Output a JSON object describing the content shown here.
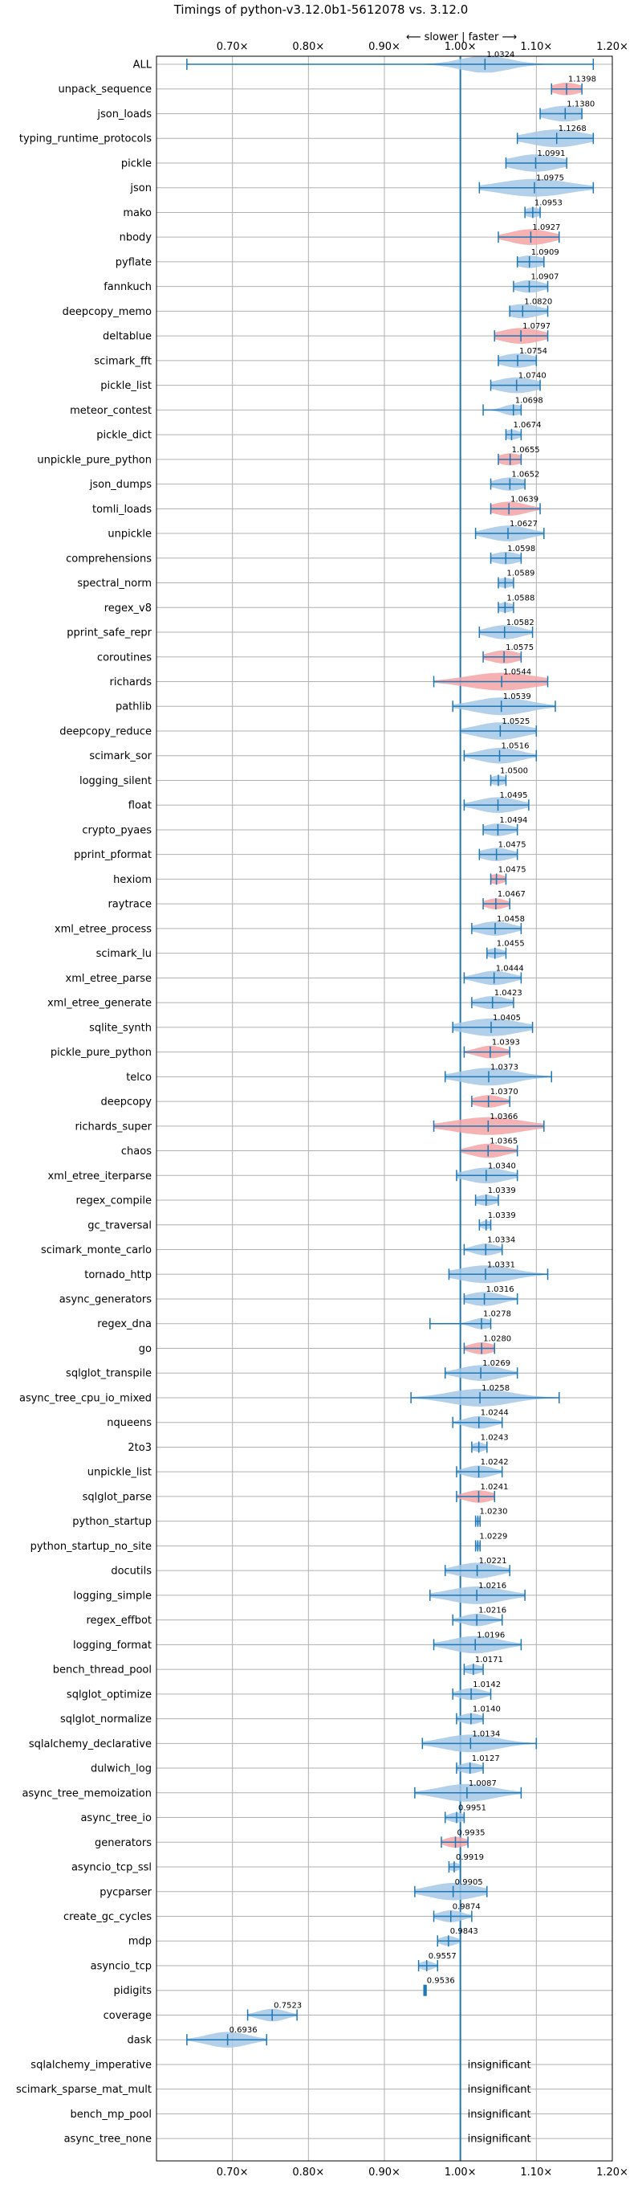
{
  "chart_data": {
    "type": "violin",
    "title": "Timings of python-v3.12.0b1-5612078 vs. 3.12.0",
    "direction_label": "⟵ slower | faster ⟶",
    "xlim": [
      0.6,
      1.2
    ],
    "xticks": [
      0.7,
      0.8,
      0.9,
      1.0,
      1.1,
      1.2
    ],
    "xtick_labels": [
      "0.70×",
      "0.80×",
      "0.90×",
      "1.00×",
      "1.10×",
      "1.20×"
    ],
    "reference_line": 1.0,
    "grid": true,
    "colors": {
      "normal": "#a6c8e6",
      "significant": "#f4a3a6",
      "line": "#1f77b4"
    },
    "insignificant_label": "insignificant",
    "benchmarks": [
      {
        "name": "ALL",
        "mean": 1.0324,
        "label": "1.0324",
        "lo": 0.64,
        "hi": 1.175,
        "width": 0.035,
        "sig": false
      },
      {
        "name": "unpack_sequence",
        "mean": 1.1398,
        "label": "1.1398",
        "lo": 1.12,
        "hi": 1.16,
        "width": 0.02,
        "sig": true
      },
      {
        "name": "json_loads",
        "mean": 1.138,
        "label": "1.1380",
        "lo": 1.105,
        "hi": 1.16,
        "width": 0.03,
        "sig": false
      },
      {
        "name": "typing_runtime_protocols",
        "mean": 1.1268,
        "label": "1.1268",
        "lo": 1.075,
        "hi": 1.175,
        "width": 0.04,
        "sig": false
      },
      {
        "name": "pickle",
        "mean": 1.0991,
        "label": "1.0991",
        "lo": 1.06,
        "hi": 1.14,
        "width": 0.035,
        "sig": false
      },
      {
        "name": "json",
        "mean": 1.0975,
        "label": "1.0975",
        "lo": 1.025,
        "hi": 1.175,
        "width": 0.05,
        "sig": false
      },
      {
        "name": "mako",
        "mean": 1.0953,
        "label": "1.0953",
        "lo": 1.085,
        "hi": 1.105,
        "width": 0.012,
        "sig": false
      },
      {
        "name": "nbody",
        "mean": 1.0927,
        "label": "1.0927",
        "lo": 1.05,
        "hi": 1.13,
        "width": 0.03,
        "sig": true
      },
      {
        "name": "pyflate",
        "mean": 1.0909,
        "label": "1.0909",
        "lo": 1.075,
        "hi": 1.11,
        "width": 0.02,
        "sig": false
      },
      {
        "name": "fannkuch",
        "mean": 1.0907,
        "label": "1.0907",
        "lo": 1.07,
        "hi": 1.115,
        "width": 0.02,
        "sig": false
      },
      {
        "name": "deepcopy_memo",
        "mean": 1.082,
        "label": "1.0820",
        "lo": 1.065,
        "hi": 1.115,
        "width": 0.025,
        "sig": false
      },
      {
        "name": "deltablue",
        "mean": 1.0797,
        "label": "1.0797",
        "lo": 1.045,
        "hi": 1.115,
        "width": 0.03,
        "sig": true
      },
      {
        "name": "scimark_fft",
        "mean": 1.0754,
        "label": "1.0754",
        "lo": 1.05,
        "hi": 1.1,
        "width": 0.025,
        "sig": false
      },
      {
        "name": "pickle_list",
        "mean": 1.074,
        "label": "1.0740",
        "lo": 1.04,
        "hi": 1.105,
        "width": 0.03,
        "sig": false
      },
      {
        "name": "meteor_contest",
        "mean": 1.0698,
        "label": "1.0698",
        "lo": 1.03,
        "hi": 1.08,
        "width": 0.015,
        "sig": false
      },
      {
        "name": "pickle_dict",
        "mean": 1.0674,
        "label": "1.0674",
        "lo": 1.06,
        "hi": 1.08,
        "width": 0.012,
        "sig": false
      },
      {
        "name": "unpickle_pure_python",
        "mean": 1.0655,
        "label": "1.0655",
        "lo": 1.05,
        "hi": 1.08,
        "width": 0.018,
        "sig": true
      },
      {
        "name": "json_dumps",
        "mean": 1.0652,
        "label": "1.0652",
        "lo": 1.04,
        "hi": 1.085,
        "width": 0.022,
        "sig": false
      },
      {
        "name": "tomli_loads",
        "mean": 1.0639,
        "label": "1.0639",
        "lo": 1.04,
        "hi": 1.105,
        "width": 0.025,
        "sig": true
      },
      {
        "name": "unpickle",
        "mean": 1.0627,
        "label": "1.0627",
        "lo": 1.02,
        "hi": 1.11,
        "width": 0.03,
        "sig": false
      },
      {
        "name": "comprehensions",
        "mean": 1.0598,
        "label": "1.0598",
        "lo": 1.04,
        "hi": 1.08,
        "width": 0.02,
        "sig": false
      },
      {
        "name": "spectral_norm",
        "mean": 1.0589,
        "label": "1.0589",
        "lo": 1.05,
        "hi": 1.07,
        "width": 0.012,
        "sig": false
      },
      {
        "name": "regex_v8",
        "mean": 1.0588,
        "label": "1.0588",
        "lo": 1.05,
        "hi": 1.07,
        "width": 0.012,
        "sig": false
      },
      {
        "name": "pprint_safe_repr",
        "mean": 1.0582,
        "label": "1.0582",
        "lo": 1.025,
        "hi": 1.095,
        "width": 0.025,
        "sig": false
      },
      {
        "name": "coroutines",
        "mean": 1.0575,
        "label": "1.0575",
        "lo": 1.03,
        "hi": 1.08,
        "width": 0.022,
        "sig": true
      },
      {
        "name": "richards",
        "mean": 1.0544,
        "label": "1.0544",
        "lo": 0.965,
        "hi": 1.115,
        "width": 0.05,
        "sig": true
      },
      {
        "name": "pathlib",
        "mean": 1.0539,
        "label": "1.0539",
        "lo": 0.99,
        "hi": 1.125,
        "width": 0.04,
        "sig": false
      },
      {
        "name": "deepcopy_reduce",
        "mean": 1.0525,
        "label": "1.0525",
        "lo": 1.0,
        "hi": 1.1,
        "width": 0.035,
        "sig": false
      },
      {
        "name": "scimark_sor",
        "mean": 1.0516,
        "label": "1.0516",
        "lo": 1.005,
        "hi": 1.1,
        "width": 0.03,
        "sig": false
      },
      {
        "name": "logging_silent",
        "mean": 1.05,
        "label": "1.0500",
        "lo": 1.04,
        "hi": 1.06,
        "width": 0.012,
        "sig": false
      },
      {
        "name": "float",
        "mean": 1.0495,
        "label": "1.0495",
        "lo": 1.005,
        "hi": 1.09,
        "width": 0.03,
        "sig": false
      },
      {
        "name": "crypto_pyaes",
        "mean": 1.0494,
        "label": "1.0494",
        "lo": 1.03,
        "hi": 1.075,
        "width": 0.02,
        "sig": false
      },
      {
        "name": "pprint_pformat",
        "mean": 1.0475,
        "label": "1.0475",
        "lo": 1.025,
        "hi": 1.075,
        "width": 0.022,
        "sig": false
      },
      {
        "name": "hexiom",
        "mean": 1.0475,
        "label": "1.0475",
        "lo": 1.04,
        "hi": 1.06,
        "width": 0.012,
        "sig": true
      },
      {
        "name": "raytrace",
        "mean": 1.0467,
        "label": "1.0467",
        "lo": 1.03,
        "hi": 1.065,
        "width": 0.015,
        "sig": true
      },
      {
        "name": "xml_etree_process",
        "mean": 1.0458,
        "label": "1.0458",
        "lo": 1.015,
        "hi": 1.08,
        "width": 0.025,
        "sig": false
      },
      {
        "name": "scimark_lu",
        "mean": 1.0455,
        "label": "1.0455",
        "lo": 1.035,
        "hi": 1.06,
        "width": 0.012,
        "sig": false
      },
      {
        "name": "xml_etree_parse",
        "mean": 1.0444,
        "label": "1.0444",
        "lo": 1.005,
        "hi": 1.08,
        "width": 0.025,
        "sig": false
      },
      {
        "name": "xml_etree_generate",
        "mean": 1.0423,
        "label": "1.0423",
        "lo": 1.015,
        "hi": 1.07,
        "width": 0.022,
        "sig": false
      },
      {
        "name": "sqlite_synth",
        "mean": 1.0405,
        "label": "1.0405",
        "lo": 0.99,
        "hi": 1.095,
        "width": 0.04,
        "sig": false
      },
      {
        "name": "pickle_pure_python",
        "mean": 1.0393,
        "label": "1.0393",
        "lo": 1.005,
        "hi": 1.065,
        "width": 0.02,
        "sig": true
      },
      {
        "name": "telco",
        "mean": 1.0373,
        "label": "1.0373",
        "lo": 0.98,
        "hi": 1.12,
        "width": 0.04,
        "sig": false
      },
      {
        "name": "deepcopy",
        "mean": 1.037,
        "label": "1.0370",
        "lo": 1.015,
        "hi": 1.065,
        "width": 0.02,
        "sig": true
      },
      {
        "name": "richards_super",
        "mean": 1.0366,
        "label": "1.0366",
        "lo": 0.965,
        "hi": 1.11,
        "width": 0.05,
        "sig": true
      },
      {
        "name": "chaos",
        "mean": 1.0365,
        "label": "1.0365",
        "lo": 1.0,
        "hi": 1.075,
        "width": 0.025,
        "sig": true
      },
      {
        "name": "xml_etree_iterparse",
        "mean": 1.034,
        "label": "1.0340",
        "lo": 0.995,
        "hi": 1.075,
        "width": 0.03,
        "sig": false
      },
      {
        "name": "regex_compile",
        "mean": 1.0339,
        "label": "1.0339",
        "lo": 1.02,
        "hi": 1.05,
        "width": 0.015,
        "sig": false
      },
      {
        "name": "gc_traversal",
        "mean": 1.0339,
        "label": "1.0339",
        "lo": 1.025,
        "hi": 1.04,
        "width": 0.008,
        "sig": false
      },
      {
        "name": "scimark_monte_carlo",
        "mean": 1.0334,
        "label": "1.0334",
        "lo": 1.005,
        "hi": 1.055,
        "width": 0.018,
        "sig": false
      },
      {
        "name": "tornado_http",
        "mean": 1.0331,
        "label": "1.0331",
        "lo": 0.985,
        "hi": 1.115,
        "width": 0.04,
        "sig": false
      },
      {
        "name": "async_generators",
        "mean": 1.0316,
        "label": "1.0316",
        "lo": 1.005,
        "hi": 1.075,
        "width": 0.025,
        "sig": false
      },
      {
        "name": "regex_dna",
        "mean": 1.0278,
        "label": "1.0278",
        "lo": 0.96,
        "hi": 1.04,
        "width": 0.015,
        "sig": false
      },
      {
        "name": "go",
        "mean": 1.028,
        "label": "1.0280",
        "lo": 1.005,
        "hi": 1.045,
        "width": 0.018,
        "sig": true
      },
      {
        "name": "sqlglot_transpile",
        "mean": 1.0269,
        "label": "1.0269",
        "lo": 0.98,
        "hi": 1.075,
        "width": 0.03,
        "sig": false
      },
      {
        "name": "async_tree_cpu_io_mixed",
        "mean": 1.0258,
        "label": "1.0258",
        "lo": 0.935,
        "hi": 1.13,
        "width": 0.045,
        "sig": false
      },
      {
        "name": "nqueens",
        "mean": 1.0244,
        "label": "1.0244",
        "lo": 0.99,
        "hi": 1.055,
        "width": 0.02,
        "sig": false
      },
      {
        "name": "2to3",
        "mean": 1.0243,
        "label": "1.0243",
        "lo": 1.015,
        "hi": 1.035,
        "width": 0.01,
        "sig": false
      },
      {
        "name": "unpickle_list",
        "mean": 1.0242,
        "label": "1.0242",
        "lo": 0.995,
        "hi": 1.055,
        "width": 0.02,
        "sig": false
      },
      {
        "name": "sqlglot_parse",
        "mean": 1.0241,
        "label": "1.0241",
        "lo": 0.995,
        "hi": 1.045,
        "width": 0.02,
        "sig": true
      },
      {
        "name": "python_startup",
        "mean": 1.023,
        "label": "1.0230",
        "lo": 1.02,
        "hi": 1.026,
        "width": 0.005,
        "sig": false
      },
      {
        "name": "python_startup_no_site",
        "mean": 1.0229,
        "label": "1.0229",
        "lo": 1.02,
        "hi": 1.026,
        "width": 0.005,
        "sig": false
      },
      {
        "name": "docutils",
        "mean": 1.0221,
        "label": "1.0221",
        "lo": 0.98,
        "hi": 1.065,
        "width": 0.03,
        "sig": false
      },
      {
        "name": "logging_simple",
        "mean": 1.0216,
        "label": "1.0216",
        "lo": 0.96,
        "hi": 1.085,
        "width": 0.04,
        "sig": false
      },
      {
        "name": "regex_effbot",
        "mean": 1.0216,
        "label": "1.0216",
        "lo": 0.99,
        "hi": 1.055,
        "width": 0.02,
        "sig": false
      },
      {
        "name": "logging_format",
        "mean": 1.0196,
        "label": "1.0196",
        "lo": 0.965,
        "hi": 1.08,
        "width": 0.035,
        "sig": false
      },
      {
        "name": "bench_thread_pool",
        "mean": 1.0171,
        "label": "1.0171",
        "lo": 1.005,
        "hi": 1.03,
        "width": 0.012,
        "sig": false
      },
      {
        "name": "sqlglot_optimize",
        "mean": 1.0142,
        "label": "1.0142",
        "lo": 0.99,
        "hi": 1.04,
        "width": 0.018,
        "sig": false
      },
      {
        "name": "sqlglot_normalize",
        "mean": 1.014,
        "label": "1.0140",
        "lo": 0.995,
        "hi": 1.03,
        "width": 0.015,
        "sig": false
      },
      {
        "name": "sqlalchemy_declarative",
        "mean": 1.0134,
        "label": "1.0134",
        "lo": 0.95,
        "hi": 1.1,
        "width": 0.04,
        "sig": false
      },
      {
        "name": "dulwich_log",
        "mean": 1.0127,
        "label": "1.0127",
        "lo": 0.995,
        "hi": 1.03,
        "width": 0.015,
        "sig": false
      },
      {
        "name": "async_tree_memoization",
        "mean": 1.0087,
        "label": "1.0087",
        "lo": 0.94,
        "hi": 1.08,
        "width": 0.04,
        "sig": false
      },
      {
        "name": "async_tree_io",
        "mean": 0.9951,
        "label": "0.9951",
        "lo": 0.98,
        "hi": 1.005,
        "width": 0.012,
        "sig": false
      },
      {
        "name": "generators",
        "mean": 0.9935,
        "label": "0.9935",
        "lo": 0.975,
        "hi": 1.01,
        "width": 0.015,
        "sig": true
      },
      {
        "name": "asyncio_tcp_ssl",
        "mean": 0.9919,
        "label": "0.9919",
        "lo": 0.985,
        "hi": 1.0,
        "width": 0.008,
        "sig": false
      },
      {
        "name": "pycparser",
        "mean": 0.9905,
        "label": "0.9905",
        "lo": 0.94,
        "hi": 1.035,
        "width": 0.035,
        "sig": false
      },
      {
        "name": "create_gc_cycles",
        "mean": 0.9874,
        "label": "0.9874",
        "lo": 0.965,
        "hi": 1.015,
        "width": 0.018,
        "sig": false
      },
      {
        "name": "mdp",
        "mean": 0.9843,
        "label": "0.9843",
        "lo": 0.97,
        "hi": 1.0,
        "width": 0.012,
        "sig": false
      },
      {
        "name": "asyncio_tcp",
        "mean": 0.9557,
        "label": "0.9557",
        "lo": 0.945,
        "hi": 0.97,
        "width": 0.01,
        "sig": false
      },
      {
        "name": "pidigits",
        "mean": 0.9536,
        "label": "0.9536",
        "lo": 0.952,
        "hi": 0.955,
        "width": 0.003,
        "sig": false
      },
      {
        "name": "coverage",
        "mean": 0.7523,
        "label": "0.7523",
        "lo": 0.72,
        "hi": 0.785,
        "width": 0.02,
        "sig": false
      },
      {
        "name": "dask",
        "mean": 0.6936,
        "label": "0.6936",
        "lo": 0.64,
        "hi": 0.745,
        "width": 0.03,
        "sig": false
      },
      {
        "name": "sqlalchemy_imperative",
        "insignificant": true
      },
      {
        "name": "scimark_sparse_mat_mult",
        "insignificant": true
      },
      {
        "name": "bench_mp_pool",
        "insignificant": true
      },
      {
        "name": "async_tree_none",
        "insignificant": true
      }
    ]
  }
}
